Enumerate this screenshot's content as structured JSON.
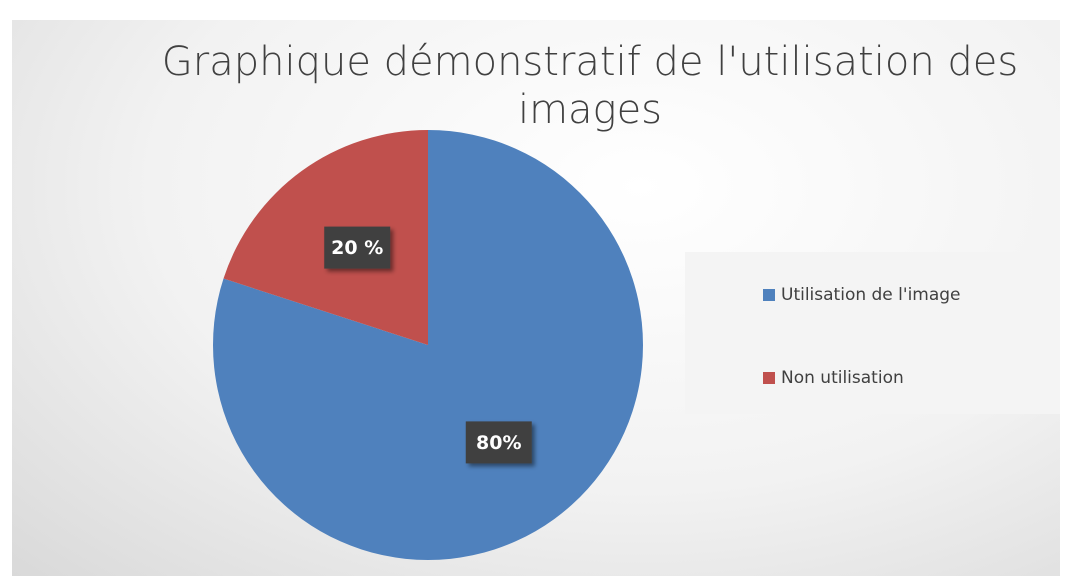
{
  "chart_data": {
    "type": "pie",
    "title": "Graphique démonstratif de l'utilisation des images",
    "categories": [
      "Utilisation de l'image",
      "Non utilisation"
    ],
    "values": [
      80,
      20
    ],
    "value_labels": [
      "80%",
      "20 %"
    ],
    "colors": [
      "#4f81bd",
      "#c0504d"
    ],
    "legend": "right"
  }
}
